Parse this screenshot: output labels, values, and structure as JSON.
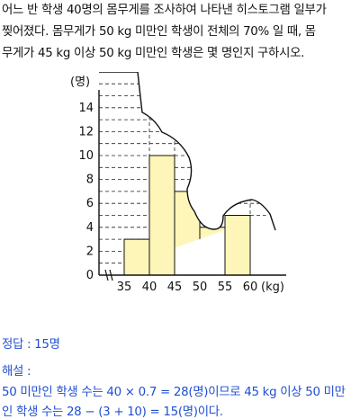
{
  "problem": {
    "lines": [
      "어느 반 학생 40명의 몸무게를 조사하여 나타낸 히스토그램 일부가",
      "찢어졌다. 몸무게가 50 kg  미만인 학생이 전체의 70% 일 때, 몸",
      "무게가 45 kg  이상 50 kg  미만인 학생은 몇 명인지 구하시오."
    ]
  },
  "chart_data": {
    "type": "bar",
    "histogram": true,
    "categories": [
      "35~40",
      "40~45",
      "45~50",
      "50~55",
      "55~60"
    ],
    "values": [
      3,
      10,
      null,
      null,
      5
    ],
    "x_ticks": [
      "35",
      "40",
      "45",
      "50",
      "55",
      "60"
    ],
    "x_unit": "(kg)",
    "y_unit": "(명)",
    "y_ticks": [
      "0",
      "2",
      "4",
      "6",
      "8",
      "10",
      "12",
      "14"
    ],
    "ylim": [
      0,
      16
    ],
    "bar_color": "#fdf6b8",
    "torn": true
  },
  "answer": {
    "label": "정답 : 15명",
    "explain_label": "해설 :",
    "explain_lines": [
      "50  미만인 학생 수는 40 × 0.7 = 28(명)이므로 45 kg  이상 50  미만",
      "인 학생 수는 28 − (3 + 10) = 15(명)이다."
    ]
  }
}
